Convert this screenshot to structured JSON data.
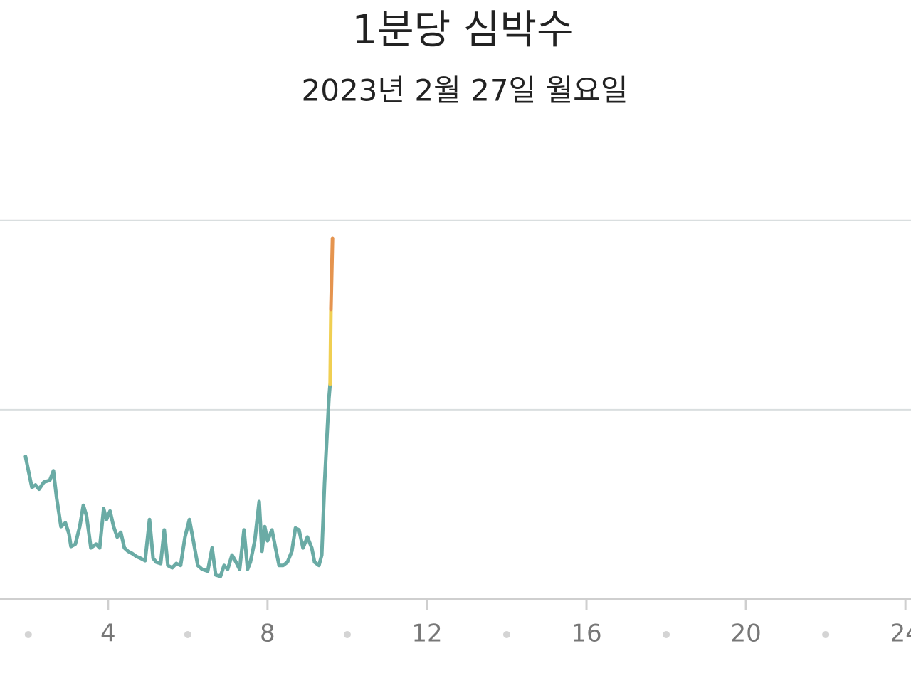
{
  "chart_data": {
    "type": "line",
    "title": "1분당 심박수",
    "subtitle": "2023년 2월 27일 월요일",
    "lines": [
      {
        "color": "#6aaba5",
        "x": [
          1.93,
          2.04,
          2.09,
          2.18,
          2.27,
          2.39,
          2.54,
          2.63,
          2.71,
          2.82,
          2.93,
          3.02,
          3.07,
          3.18,
          3.29,
          3.38,
          3.46,
          3.57,
          3.7,
          3.79,
          3.89,
          3.96,
          4.05,
          4.14,
          4.23,
          4.32,
          4.41,
          4.5,
          4.61,
          4.71,
          4.82,
          4.93,
          5.04,
          5.13,
          5.21,
          5.32,
          5.41,
          5.5,
          5.61,
          5.71,
          5.82,
          5.93,
          6.04,
          6.14,
          6.25,
          6.36,
          6.5,
          6.61,
          6.7,
          6.82,
          6.91,
          7.0,
          7.11,
          7.21,
          7.3,
          7.41,
          7.5,
          7.57,
          7.68,
          7.79,
          7.86,
          7.93,
          8.0,
          8.11,
          8.2,
          8.29,
          8.39,
          8.5,
          8.61,
          8.7,
          8.79,
          8.89,
          9.0,
          9.11,
          9.18,
          9.29,
          9.36,
          9.43,
          9.54,
          9.57
        ],
        "values": [
          70.1,
          65.6,
          63.6,
          64.1,
          63.2,
          64.7,
          65.1,
          67.1,
          61.4,
          55.3,
          56.1,
          53.8,
          51.1,
          51.6,
          55.3,
          59.8,
          57.6,
          50.8,
          51.6,
          50.8,
          59.1,
          56.8,
          58.6,
          55.3,
          53.1,
          54.1,
          50.8,
          50.1,
          49.6,
          49.0,
          48.6,
          48.1,
          56.8,
          48.6,
          47.8,
          47.5,
          54.6,
          47.1,
          46.6,
          47.5,
          47.1,
          53.1,
          56.8,
          52.3,
          47.1,
          46.3,
          45.9,
          50.8,
          45.1,
          44.8,
          47.1,
          46.3,
          49.3,
          47.8,
          46.3,
          54.6,
          46.3,
          47.8,
          52.3,
          60.6,
          50.1,
          55.3,
          52.3,
          54.6,
          50.8,
          47.1,
          47.1,
          47.8,
          50.1,
          55.0,
          54.6,
          50.8,
          53.1,
          50.8,
          47.8,
          47.1,
          49.3,
          64.4,
          82.4,
          85.4
        ]
      },
      {
        "color": "#f0cf52",
        "x": [
          9.57,
          9.59
        ],
        "values": [
          85.4,
          101.2
        ]
      },
      {
        "color": "#e5944f",
        "x": [
          9.59,
          9.63
        ],
        "values": [
          101.2,
          116.2
        ]
      }
    ],
    "xlim": [
      1.29,
      24.14
    ],
    "xticks": [
      4,
      8,
      12,
      16,
      20,
      24
    ],
    "xminor": [
      2,
      6,
      10,
      14,
      18,
      22
    ],
    "ylim": [
      40,
      138
    ],
    "ygrid": [
      80,
      120
    ]
  }
}
